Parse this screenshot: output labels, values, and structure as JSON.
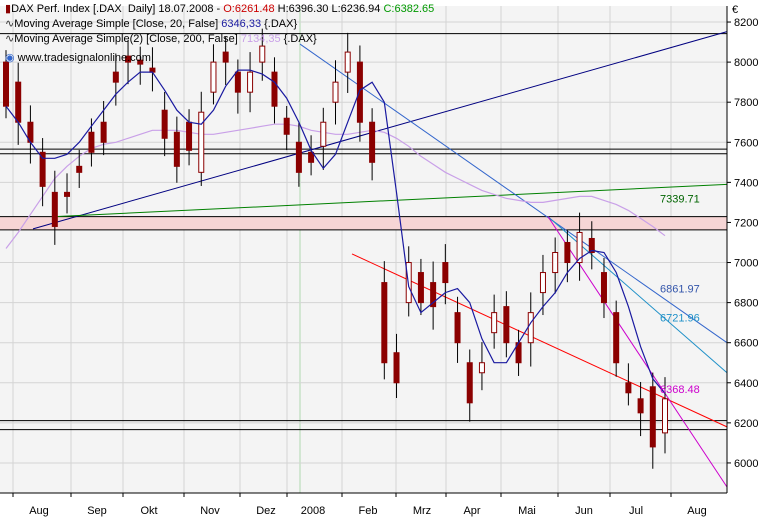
{
  "chart_data": {
    "type": "candlestick",
    "currency_symbol": "€",
    "watermark": "www.tradesignalonline.com",
    "ylim": [
      5850,
      8280
    ],
    "y_ticks": [
      6000,
      6200,
      6400,
      6600,
      6800,
      7000,
      7200,
      7400,
      7600,
      7800,
      8000,
      8200
    ],
    "x_labels": [
      "Aug",
      "Sep",
      "Okt",
      "Nov",
      "Dez",
      "2008",
      "Feb",
      "Mrz",
      "Apr",
      "Mai",
      "Jun",
      "Jul",
      "Aug"
    ],
    "legend": [
      {
        "parts": [
          {
            "text": "DAX Perf. Index [.DAX  Daily] 18.07.2008 - ",
            "color": "#000000"
          },
          {
            "text": "O:6261.48",
            "color": "#cc0000"
          },
          {
            "text": " H:6396.30 L:6236.94 ",
            "color": "#000000"
          },
          {
            "text": "C:6382.65",
            "color": "#009900"
          }
        ]
      },
      {
        "parts": [
          {
            "text": "Moving Average Simple [Close, 20, False] ",
            "color": "#000000"
          },
          {
            "text": "6346,33",
            "color": "#1a1aa0"
          },
          {
            "text": " {.DAX}",
            "color": "#000000"
          }
        ]
      },
      {
        "parts": [
          {
            "text": "Moving Average Simple(2) [Close, 200, False] ",
            "color": "#000000"
          },
          {
            "text": "7134,35",
            "color": "#c9a0e8"
          },
          {
            "text": " {.DAX}",
            "color": "#000000"
          }
        ]
      }
    ],
    "price_series": [
      [
        8000,
        7780
      ],
      [
        7900,
        7700
      ],
      [
        7700,
        7600
      ],
      [
        7550,
        7380
      ],
      [
        7350,
        7180
      ],
      [
        7350,
        7330
      ],
      [
        7480,
        7450
      ],
      [
        7650,
        7550
      ],
      [
        7700,
        7600
      ],
      [
        7950,
        7900
      ],
      [
        8030,
        8000
      ],
      [
        8010,
        7990
      ],
      [
        7970,
        7950
      ],
      [
        7760,
        7620
      ],
      [
        7650,
        7480
      ],
      [
        7700,
        7560
      ],
      [
        7450,
        7750
      ],
      [
        7850,
        8000
      ],
      [
        8050,
        8000
      ],
      [
        7950,
        7850
      ],
      [
        7850,
        7950
      ],
      [
        8000,
        8080
      ],
      [
        7950,
        7780
      ],
      [
        7720,
        7640
      ],
      [
        7600,
        7450
      ],
      [
        7550,
        7500
      ],
      [
        7580,
        7700
      ],
      [
        7800,
        7900
      ],
      [
        7950,
        8050
      ],
      [
        8000,
        7700
      ],
      [
        7700,
        7500
      ],
      [
        6900,
        6500
      ],
      [
        6550,
        6400
      ],
      [
        6800,
        7000
      ],
      [
        6950,
        6800
      ],
      [
        6900,
        6780
      ],
      [
        7000,
        6900
      ],
      [
        6750,
        6600
      ],
      [
        6500,
        6300
      ],
      [
        6450,
        6500
      ],
      [
        6650,
        6750
      ],
      [
        6780,
        6600
      ],
      [
        6600,
        6500
      ],
      [
        6600,
        6750
      ],
      [
        6850,
        6950
      ],
      [
        6950,
        7050
      ],
      [
        7100,
        7000
      ],
      [
        7000,
        7150
      ],
      [
        7120,
        7050
      ],
      [
        6950,
        6800
      ],
      [
        6750,
        6500
      ],
      [
        6400,
        6350
      ],
      [
        6320,
        6250
      ],
      [
        6380,
        6080
      ],
      [
        6150,
        6320
      ]
    ],
    "ma20_values": [
      7780,
      7700,
      7600,
      7520,
      7520,
      7540,
      7600,
      7680,
      7760,
      7840,
      7900,
      7950,
      7950,
      7860,
      7760,
      7700,
      7690,
      7760,
      7880,
      7960,
      7960,
      7940,
      7900,
      7820,
      7700,
      7560,
      7470,
      7540,
      7700,
      7860,
      7900,
      7800,
      7350,
      6880,
      6750,
      6800,
      6850,
      6870,
      6800,
      6620,
      6500,
      6500,
      6600,
      6700,
      6780,
      6850,
      6950,
      7020,
      7060,
      7050,
      6950,
      6780,
      6580,
      6420,
      6346
    ],
    "ma200_values": [
      7070,
      7150,
      7240,
      7330,
      7420,
      7480,
      7530,
      7570,
      7590,
      7600,
      7620,
      7640,
      7660,
      7660,
      7660,
      7650,
      7640,
      7640,
      7650,
      7660,
      7670,
      7680,
      7690,
      7690,
      7680,
      7660,
      7650,
      7640,
      7640,
      7650,
      7660,
      7650,
      7620,
      7580,
      7530,
      7490,
      7450,
      7420,
      7390,
      7360,
      7340,
      7320,
      7310,
      7300,
      7300,
      7310,
      7320,
      7330,
      7330,
      7310,
      7290,
      7260,
      7220,
      7180,
      7134
    ],
    "horizontal_levels": [
      {
        "price": 8142,
        "color": "#000000"
      },
      {
        "price": 7566,
        "color": "#000000"
      },
      {
        "price": 7543,
        "color": "#000000"
      },
      {
        "price": 7229,
        "color": "#000000",
        "fill": "#f6d5d5"
      },
      {
        "price": 7163,
        "color": "#000000"
      },
      {
        "price": 6211,
        "color": "#000000"
      },
      {
        "price": 6166,
        "color": "#000000"
      }
    ],
    "trend_labels": [
      {
        "text": "7339.71",
        "color": "#006400"
      },
      {
        "text": "6861.97",
        "color": "#3355aa"
      },
      {
        "text": "6721.96",
        "color": "#1e90c8"
      },
      {
        "text": "6368.48",
        "color": "#cc00cc"
      }
    ],
    "colors": {
      "candle_body": "#8b0000",
      "candle_wick": "#000000",
      "ma20": "#1a1aa0",
      "ma200": "#c9a0e8",
      "grid": "#d4d4d4",
      "plot_bg": "#f4f4f4"
    }
  }
}
